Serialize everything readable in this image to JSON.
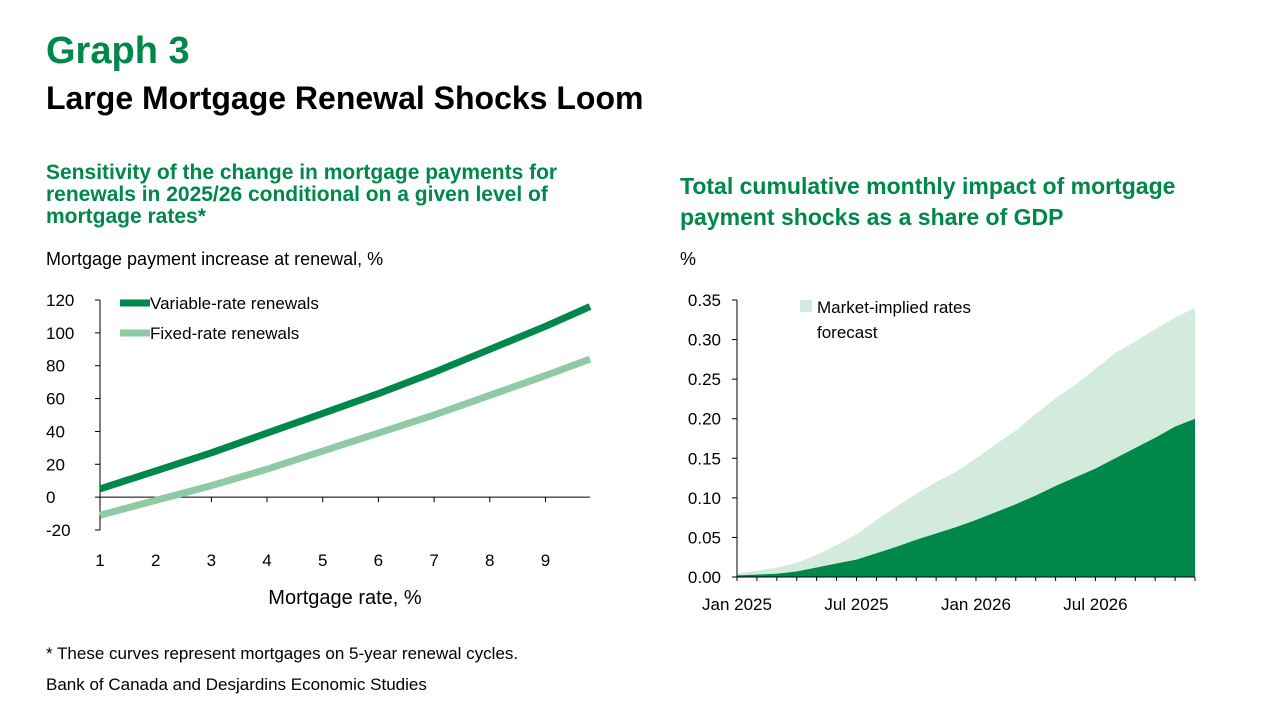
{
  "header": {
    "graph_label": "Graph 3",
    "title": "Large Mortgage Renewal Shocks Loom"
  },
  "left_panel": {
    "subtitle": "Sensitivity of the change in mortgage payments for renewals in 2025/26 conditional on a given level of mortgage rates*",
    "ylabel": "Mortgage payment increase at renewal, %",
    "xlabel": "Mortgage rate, %"
  },
  "right_panel": {
    "subtitle": "Total cumulative monthly impact of mortgage payment shocks as a share of GDP",
    "ylabel": "%"
  },
  "footnote": "* These curves represent mortgages on 5-year renewal cycles.",
  "source": "Bank of Canada and Desjardins Economic Studies",
  "colors": {
    "dark_green": "#00874a",
    "light_green": "#8ecba5",
    "pale_green": "#d3ebdd",
    "title_green": "#00874a"
  },
  "chart_data": [
    {
      "type": "line",
      "xlim": [
        1,
        9.8
      ],
      "ylim": [
        -20,
        120
      ],
      "x_ticks": [
        "1",
        "2",
        "3",
        "4",
        "5",
        "6",
        "7",
        "8",
        "9"
      ],
      "y_ticks": [
        "120",
        "100",
        "80",
        "60",
        "40",
        "20",
        "0",
        "-20"
      ],
      "xlabel": "Mortgage rate, %",
      "ylabel": "Mortgage payment increase at renewal, %",
      "legend_position": "top-left",
      "series": [
        {
          "name": "Variable-rate renewals",
          "color": "#00874a",
          "x": [
            1,
            2,
            3,
            4,
            5,
            6,
            7,
            8,
            9,
            9.8
          ],
          "y": [
            5,
            16,
            27,
            39,
            51,
            63,
            76,
            90,
            104,
            116
          ]
        },
        {
          "name": "Fixed-rate renewals",
          "color": "#8ecba5",
          "x": [
            1,
            2,
            3,
            4,
            5,
            6,
            7,
            8,
            9,
            9.8
          ],
          "y": [
            -11,
            -2,
            7,
            17,
            28,
            39,
            50,
            62,
            74,
            84
          ]
        }
      ]
    },
    {
      "type": "area",
      "ylim": [
        0,
        0.35
      ],
      "y_ticks": [
        "0.35",
        "0.30",
        "0.25",
        "0.20",
        "0.15",
        "0.10",
        "0.05",
        "0.00"
      ],
      "x_tick_labels": [
        "Jan 2025",
        "Jul 2025",
        "Jan 2026",
        "Jul 2026"
      ],
      "x": [
        "2025-01",
        "2025-02",
        "2025-03",
        "2025-04",
        "2025-05",
        "2025-06",
        "2025-07",
        "2025-08",
        "2025-09",
        "2025-10",
        "2025-11",
        "2025-12",
        "2026-01",
        "2026-02",
        "2026-03",
        "2026-04",
        "2026-05",
        "2026-06",
        "2026-07",
        "2026-08",
        "2026-09",
        "2026-10",
        "2026-11",
        "2026-12"
      ],
      "legend_position": "top-center",
      "series": [
        {
          "name": "Market-implied rates forecast",
          "color": "#d3ebdd",
          "values": [
            0.004,
            0.008,
            0.012,
            0.018,
            0.028,
            0.04,
            0.054,
            0.072,
            0.089,
            0.105,
            0.12,
            0.133,
            0.15,
            0.168,
            0.185,
            0.206,
            0.226,
            0.243,
            0.263,
            0.283,
            0.298,
            0.313,
            0.328,
            0.34
          ]
        },
        {
          "name": "",
          "color": "#00874a",
          "values": [
            0.002,
            0.003,
            0.004,
            0.007,
            0.012,
            0.017,
            0.022,
            0.03,
            0.038,
            0.047,
            0.055,
            0.063,
            0.072,
            0.082,
            0.092,
            0.103,
            0.115,
            0.126,
            0.137,
            0.15,
            0.163,
            0.176,
            0.19,
            0.2
          ]
        }
      ]
    }
  ]
}
